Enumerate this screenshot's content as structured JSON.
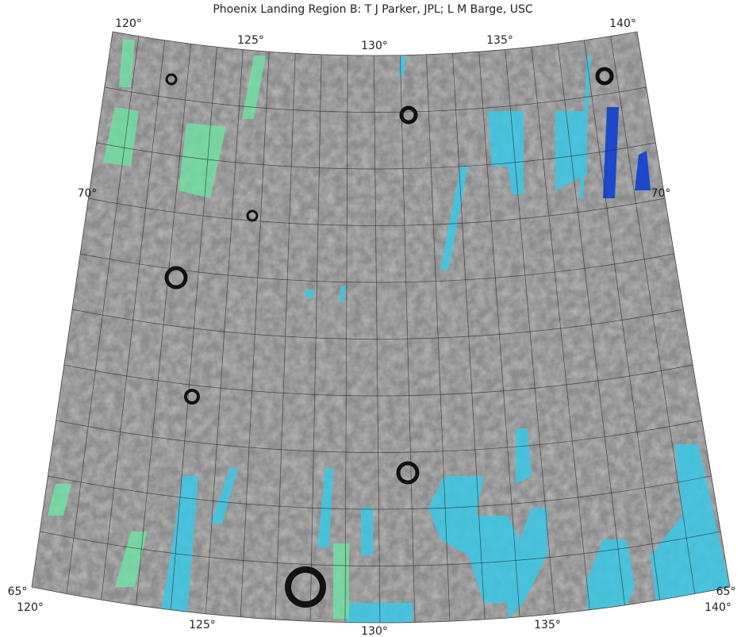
{
  "title": "Phoenix Landing Region B:  T J Parker, JPL; L M Barge, USC",
  "top_longitude_labels": [
    "120°",
    "125°",
    "130°",
    "135°",
    "140°"
  ],
  "bottom_longitude_labels": [
    "120°",
    "125°",
    "130°",
    "135°",
    "140°"
  ],
  "left_latitude_labels": [
    "70°",
    "65°"
  ],
  "right_latitude_labels": [
    "70°",
    "65°"
  ]
}
